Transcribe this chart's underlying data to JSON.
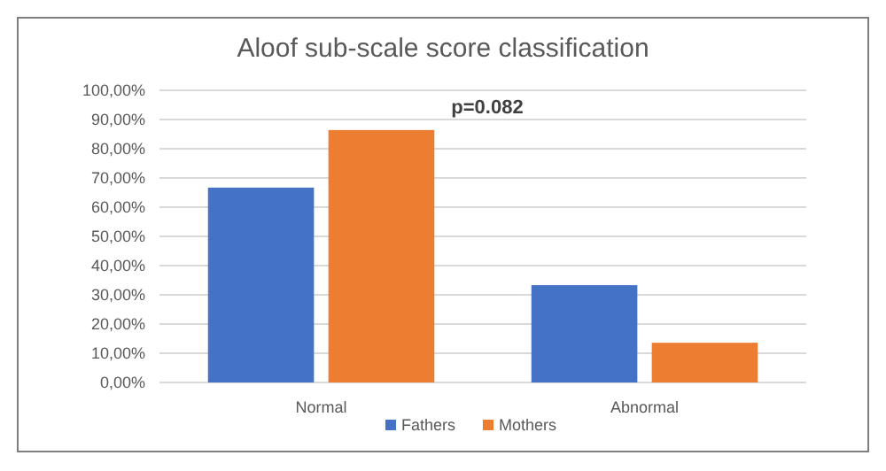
{
  "chart_data": {
    "type": "bar",
    "title": "Aloof sub-scale score classification",
    "categories": [
      "Normal",
      "Abnormal"
    ],
    "series": [
      {
        "name": "Fathers",
        "color": "#4472c4",
        "values": [
          66.7,
          33.3
        ]
      },
      {
        "name": "Mothers",
        "color": "#ed7d31",
        "values": [
          86.4,
          13.6
        ]
      }
    ],
    "ylim": [
      0,
      100
    ],
    "yticks": [
      {
        "value": 0,
        "label": "0,00%"
      },
      {
        "value": 10,
        "label": "10,00%"
      },
      {
        "value": 20,
        "label": "20,00%"
      },
      {
        "value": 30,
        "label": "30,00%"
      },
      {
        "value": 40,
        "label": "40,00%"
      },
      {
        "value": 50,
        "label": "50,00%"
      },
      {
        "value": 60,
        "label": "60,00%"
      },
      {
        "value": 70,
        "label": "70,00%"
      },
      {
        "value": 80,
        "label": "80,00%"
      },
      {
        "value": 90,
        "label": "90,00%"
      },
      {
        "value": 100,
        "label": "100,00%"
      }
    ],
    "grid": "y",
    "legend": "bottom",
    "annotations": [
      "p=0.082"
    ]
  }
}
